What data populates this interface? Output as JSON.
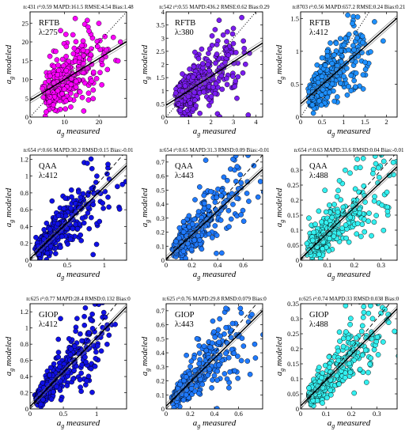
{
  "colors": {
    "rftb_275": "#ff00ff",
    "rftb_380": "#7a1cf0",
    "rftb_412": "#1e90ff",
    "qaa_412": "#1010e6",
    "qaa_443": "#1f7aff",
    "qaa_488": "#33f0f0",
    "giop_412": "#1010e6",
    "giop_443": "#1f7aff",
    "giop_488": "#33f0f0",
    "fit_line": "#000000",
    "one_to_one": "#000000"
  },
  "chart_data": [
    {
      "type": "scatter",
      "id": "rftb_275",
      "stats": "n:431 r²:0.59 MAPD:161.5 RMSE:4.54 Bias:1.48",
      "model": "RFTB",
      "wavelength": "λ:275",
      "xlabel_main": "a",
      "xlabel_sub": "g",
      "xlabel_rest": "measured",
      "ylabel_main": "a",
      "ylabel_sub": "g",
      "ylabel_rest": "modeled",
      "xlim": [
        0,
        28
      ],
      "ylim": [
        0,
        28
      ],
      "xticks": [
        "0",
        "10",
        "20"
      ],
      "xtick_vals": [
        0,
        10,
        20
      ],
      "yticks": [
        "0",
        "5",
        "10",
        "15",
        "20",
        "25"
      ],
      "ytick_vals": [
        0,
        5,
        10,
        15,
        20,
        25
      ],
      "fit": {
        "slope": 0.56,
        "intercept": 4.4
      },
      "one_to_one": "dotted",
      "color_key": "rftb_275",
      "n_points": 330,
      "spread": 0.35,
      "cluster": [
        5,
        6,
        10,
        10,
        14,
        14,
        20,
        18
      ],
      "seed": 11
    },
    {
      "type": "scatter",
      "id": "rftb_380",
      "stats": "n:542 r²:0.55 MAPD:436.2 RMSE:0.62 Bias:0.29",
      "model": "RFTB",
      "wavelength": "λ:380",
      "xlabel_main": "a",
      "xlabel_sub": "g",
      "xlabel_rest": "measured",
      "ylabel_main": "a",
      "ylabel_sub": "g",
      "ylabel_rest": "modeled",
      "xlim": [
        0,
        4.3
      ],
      "ylim": [
        0,
        4
      ],
      "xticks": [
        "0",
        "1",
        "2",
        "3",
        "4"
      ],
      "xtick_vals": [
        0,
        1,
        2,
        3,
        4
      ],
      "yticks": [
        "0",
        "0.5",
        "1",
        "1.5",
        "2",
        "2.5",
        "3",
        "3.5",
        "4"
      ],
      "ytick_vals": [
        0,
        0.5,
        1,
        1.5,
        2,
        2.5,
        3,
        3.5,
        4
      ],
      "fit": {
        "slope": 0.55,
        "intercept": 0.45
      },
      "one_to_one": "dotted",
      "color_key": "rftb_380",
      "n_points": 380,
      "spread": 0.35,
      "cluster": [
        0.6,
        0.7,
        1.2,
        1.1,
        2.0,
        1.7,
        3.2,
        2.3
      ],
      "seed": 23
    },
    {
      "type": "scatter",
      "id": "rftb_412",
      "stats": "n:8703 r²:0.56 MAPD:657.2 RMSE:0.24 Bias:0.21",
      "model": "RFTB",
      "wavelength": "λ:412",
      "xlabel_main": "a",
      "xlabel_sub": "g",
      "xlabel_rest": "measured",
      "ylabel_main": "a",
      "ylabel_sub": "g",
      "ylabel_rest": "modeled",
      "xlim": [
        0,
        2.25
      ],
      "ylim": [
        0,
        1.6
      ],
      "xticks": [
        "0",
        "0.5",
        "1",
        "1.5",
        "2"
      ],
      "xtick_vals": [
        0,
        0.5,
        1,
        1.5,
        2
      ],
      "yticks": [
        "0",
        "0.5",
        "1",
        "1.5"
      ],
      "ytick_vals": [
        0,
        0.5,
        1,
        1.5
      ],
      "fit": {
        "slope": 0.58,
        "intercept": 0.2
      },
      "one_to_one": "dotted",
      "color_key": "rftb_412",
      "n_points": 420,
      "spread": 0.3,
      "cluster": [
        0.25,
        0.3,
        0.5,
        0.5,
        0.9,
        0.75,
        1.5,
        1.1
      ],
      "seed": 37
    },
    {
      "type": "scatter",
      "id": "qaa_412",
      "stats": "n:654 r²:0.66 MAPD:30.2 RMSD:0.15 Bias:-0.01",
      "model": "QAA",
      "wavelength": "λ:412",
      "xlabel_main": "a",
      "xlabel_sub": "g",
      "xlabel_rest": "measured",
      "ylabel_main": "a",
      "ylabel_sub": "g",
      "ylabel_rest": "modeled",
      "xlim": [
        0,
        1.3
      ],
      "ylim": [
        0,
        1.25
      ],
      "xticks": [
        "0",
        "0.5",
        "1"
      ],
      "xtick_vals": [
        0,
        0.5,
        1
      ],
      "yticks": [
        "0",
        "0.2",
        "0.4",
        "0.6",
        "0.8",
        "1",
        "1.2"
      ],
      "ytick_vals": [
        0,
        0.2,
        0.4,
        0.6,
        0.8,
        1,
        1.2
      ],
      "fit": {
        "slope": 0.85,
        "intercept": 0.02
      },
      "one_to_one": "dashed",
      "color_key": "qaa_412",
      "n_points": 420,
      "spread": 0.35,
      "cluster": [
        0.12,
        0.12,
        0.3,
        0.28,
        0.6,
        0.55,
        1.0,
        0.85
      ],
      "seed": 41
    },
    {
      "type": "scatter",
      "id": "qaa_443",
      "stats": "n:654 r²:0.65 MAPD:31.3 RMSD:0.09 Bias:-0.01",
      "model": "QAA",
      "wavelength": "λ:443",
      "xlabel_main": "a",
      "xlabel_sub": "g",
      "xlabel_rest": "measured",
      "ylabel_main": "a",
      "ylabel_sub": "g",
      "ylabel_rest": "modeled",
      "xlim": [
        0,
        0.75
      ],
      "ylim": [
        0,
        0.75
      ],
      "xticks": [
        "0",
        "0.2",
        "0.4",
        "0.6"
      ],
      "xtick_vals": [
        0,
        0.2,
        0.4,
        0.6
      ],
      "yticks": [
        "0",
        "0.1",
        "0.2",
        "0.3",
        "0.4",
        "0.5",
        "0.6",
        "0.7"
      ],
      "ytick_vals": [
        0,
        0.1,
        0.2,
        0.3,
        0.4,
        0.5,
        0.6,
        0.7
      ],
      "fit": {
        "slope": 0.85,
        "intercept": 0.01
      },
      "one_to_one": "dashed",
      "color_key": "qaa_443",
      "n_points": 400,
      "spread": 0.35,
      "cluster": [
        0.08,
        0.08,
        0.18,
        0.17,
        0.35,
        0.32,
        0.6,
        0.5
      ],
      "seed": 53
    },
    {
      "type": "scatter",
      "id": "qaa_488",
      "stats": "n:654 r²:0.63 MAPD:33.6 RMSD:0.04 Bias:-0.01",
      "model": "QAA",
      "wavelength": "λ:488",
      "xlabel_main": "a",
      "xlabel_sub": "g",
      "xlabel_rest": "measured",
      "ylabel_main": "a",
      "ylabel_sub": "g",
      "ylabel_rest": "modeled",
      "xlim": [
        0,
        0.36
      ],
      "ylim": [
        0,
        0.35
      ],
      "xticks": [
        "0",
        "0.1",
        "0.2",
        "0.3"
      ],
      "xtick_vals": [
        0,
        0.1,
        0.2,
        0.3
      ],
      "yticks": [
        "0",
        "0.05",
        "0.1",
        "0.15",
        "0.2",
        "0.25",
        "0.3"
      ],
      "ytick_vals": [
        0,
        0.05,
        0.1,
        0.15,
        0.2,
        0.25,
        0.3
      ],
      "fit": {
        "slope": 0.85,
        "intercept": 0.005
      },
      "one_to_one": "dashed",
      "color_key": "qaa_488",
      "n_points": 380,
      "spread": 0.35,
      "cluster": [
        0.04,
        0.04,
        0.09,
        0.08,
        0.17,
        0.15,
        0.3,
        0.24
      ],
      "seed": 61
    },
    {
      "type": "scatter",
      "id": "giop_412",
      "stats": "n:625 r²:0.77 MAPD:28.4 RMSD:0.132 Bias:0",
      "model": "GIOP",
      "wavelength": "λ:412",
      "xlabel_main": "a",
      "xlabel_sub": "g",
      "xlabel_rest": "measured",
      "ylabel_main": "a",
      "ylabel_sub": "g",
      "ylabel_rest": "modeled",
      "xlim": [
        0,
        1.45
      ],
      "ylim": [
        0,
        1.3
      ],
      "xticks": [
        "0",
        "0.5",
        "1"
      ],
      "xtick_vals": [
        0,
        0.5,
        1
      ],
      "yticks": [
        "0",
        "0.2",
        "0.4",
        "0.6",
        "0.8",
        "1",
        "1.2"
      ],
      "ytick_vals": [
        0,
        0.2,
        0.4,
        0.6,
        0.8,
        1,
        1.2
      ],
      "fit": {
        "slope": 0.85,
        "intercept": 0.03
      },
      "one_to_one": "dashed",
      "color_key": "giop_412",
      "n_points": 450,
      "spread": 0.3,
      "cluster": [
        0.12,
        0.12,
        0.3,
        0.28,
        0.65,
        0.6,
        1.1,
        0.95
      ],
      "seed": 71
    },
    {
      "type": "scatter",
      "id": "giop_443",
      "stats": "n:625 r²:0.76 MAPD:29.8 RMSD:0.079 Bias:0",
      "model": "GIOP",
      "wavelength": "λ:443",
      "xlabel_main": "a",
      "xlabel_sub": "g",
      "xlabel_rest": "measured",
      "ylabel_main": "a",
      "ylabel_sub": "g",
      "ylabel_rest": "modeled",
      "xlim": [
        0,
        0.8
      ],
      "ylim": [
        0,
        0.75
      ],
      "xticks": [
        "0",
        "0.2",
        "0.4",
        "0.6"
      ],
      "xtick_vals": [
        0,
        0.2,
        0.4,
        0.6
      ],
      "yticks": [
        "0",
        "0.1",
        "0.2",
        "0.3",
        "0.4",
        "0.5",
        "0.6",
        "0.7"
      ],
      "ytick_vals": [
        0,
        0.1,
        0.2,
        0.3,
        0.4,
        0.5,
        0.6,
        0.7
      ],
      "fit": {
        "slope": 0.85,
        "intercept": 0.02
      },
      "one_to_one": "dashed",
      "color_key": "giop_443",
      "n_points": 420,
      "spread": 0.3,
      "cluster": [
        0.08,
        0.08,
        0.18,
        0.17,
        0.38,
        0.34,
        0.65,
        0.55
      ],
      "seed": 83
    },
    {
      "type": "scatter",
      "id": "giop_488",
      "stats": "n:625 r²:0.74 MAPD:33 RMSD:0.038 Bias:0",
      "model": "GIOP",
      "wavelength": "λ:488",
      "xlabel_main": "a",
      "xlabel_sub": "g",
      "xlabel_rest": "measured",
      "ylabel_main": "a",
      "ylabel_sub": "g",
      "ylabel_rest": "modeled",
      "xlim": [
        0,
        0.38
      ],
      "ylim": [
        0,
        0.35
      ],
      "xticks": [
        "0",
        "0.1",
        "0.2",
        "0.3"
      ],
      "xtick_vals": [
        0,
        0.1,
        0.2,
        0.3
      ],
      "yticks": [
        "0",
        "0.05",
        "0.1",
        "0.15",
        "0.2",
        "0.25",
        "0.3",
        "0.35"
      ],
      "ytick_vals": [
        0,
        0.05,
        0.1,
        0.15,
        0.2,
        0.25,
        0.3,
        0.35
      ],
      "fit": {
        "slope": 0.85,
        "intercept": 0.01
      },
      "one_to_one": "dashed",
      "color_key": "giop_488",
      "n_points": 400,
      "spread": 0.3,
      "cluster": [
        0.04,
        0.04,
        0.09,
        0.08,
        0.18,
        0.16,
        0.3,
        0.26
      ],
      "seed": 97
    }
  ]
}
